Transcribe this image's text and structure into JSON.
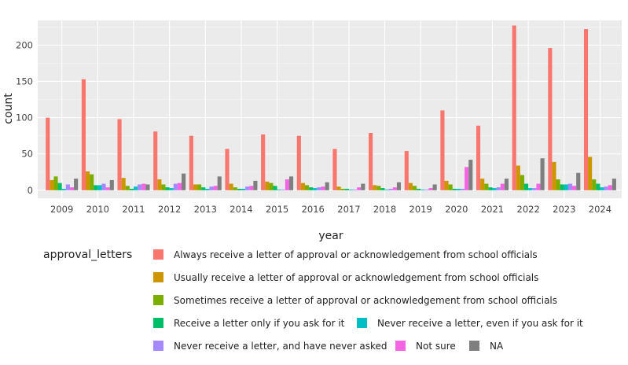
{
  "chart_data": {
    "type": "bar",
    "xlabel": "year",
    "ylabel": "count",
    "ylim": [
      -11,
      234
    ],
    "yticks": [
      0,
      50,
      100,
      150,
      200
    ],
    "grid": true,
    "legend_title": "approval_letters",
    "legend_position": "bottom",
    "categories": [
      "2009",
      "2010",
      "2011",
      "2012",
      "2013",
      "2014",
      "2015",
      "2016",
      "2017",
      "2018",
      "2019",
      "2020",
      "2021",
      "2022",
      "2023",
      "2024"
    ],
    "series": [
      {
        "name": "Always receive a letter of approval or acknowledgement from school officials",
        "color": "#F8766D",
        "values": [
          100,
          153,
          98,
          81,
          75,
          57,
          77,
          75,
          57,
          79,
          54,
          110,
          89,
          227,
          196,
          222
        ]
      },
      {
        "name": "Usually receive a letter of approval or acknowledgement from school officials",
        "color": "#CD9600",
        "values": [
          14,
          26,
          17,
          15,
          8,
          9,
          12,
          10,
          5,
          7,
          10,
          13,
          16,
          34,
          39,
          46
        ]
      },
      {
        "name": "Sometimes receive a letter of approval or acknowledgement from school officials",
        "color": "#7CAE00",
        "values": [
          19,
          22,
          6,
          8,
          8,
          4,
          10,
          7,
          2,
          6,
          6,
          8,
          9,
          21,
          15,
          15
        ]
      },
      {
        "name": "Receive a letter only if you ask for it",
        "color": "#00BE67",
        "values": [
          10,
          7,
          2,
          4,
          4,
          2,
          6,
          4,
          2,
          3,
          2,
          2,
          4,
          9,
          8,
          9
        ]
      },
      {
        "name": "Never receive a letter, even if you ask for it",
        "color": "#00BFC4",
        "values": [
          2,
          7,
          5,
          3,
          2,
          2,
          1,
          3,
          1,
          1,
          1,
          2,
          3,
          3,
          8,
          4
        ]
      },
      {
        "name": "Never receive a letter, and have never asked",
        "color": "#A58AFF",
        "values": [
          8,
          9,
          8,
          9,
          5,
          5,
          1,
          4,
          1,
          2,
          1,
          2,
          4,
          3,
          9,
          5
        ]
      },
      {
        "name": "Not sure",
        "color": "#F564E3",
        "values": [
          4,
          4,
          9,
          10,
          6,
          6,
          15,
          5,
          4,
          4,
          3,
          32,
          9,
          9,
          6,
          7
        ]
      },
      {
        "name": "NA",
        "color": "#7F7F7F",
        "values": [
          16,
          14,
          8,
          23,
          19,
          13,
          19,
          11,
          9,
          11,
          8,
          42,
          16,
          44,
          24,
          16
        ]
      }
    ]
  }
}
